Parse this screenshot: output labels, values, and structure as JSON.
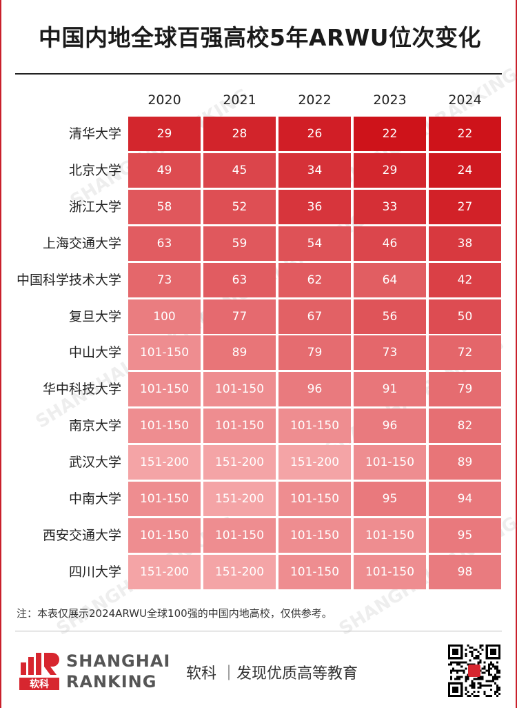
{
  "title": "中国内地全球百强高校5年ARWU位次变化",
  "note": "注：本表仅展示2024ARWU全球100强的中国内地高校，仅供参考。",
  "footer": {
    "logo_cn": "软科",
    "logo_line1": "SHANGHAI",
    "logo_line2": "RANKING",
    "slogan": "软科 ｜发现优质高等教育"
  },
  "watermark": "SHANGHAI RANKING",
  "colors": {
    "accent": "#c9202b",
    "dark_cell": "#cc0c14",
    "light_cell": "#f4a4a6"
  },
  "chart_data": {
    "type": "heatmap",
    "columns": [
      "2020",
      "2021",
      "2022",
      "2023",
      "2024"
    ],
    "rows": [
      "清华大学",
      "北京大学",
      "浙江大学",
      "上海交通大学",
      "中国科学技术大学",
      "复旦大学",
      "中山大学",
      "华中科技大学",
      "南京大学",
      "武汉大学",
      "中南大学",
      "西安交通大学",
      "四川大学"
    ],
    "values": [
      [
        "29",
        "28",
        "26",
        "22",
        "22"
      ],
      [
        "49",
        "45",
        "34",
        "29",
        "24"
      ],
      [
        "58",
        "52",
        "36",
        "33",
        "27"
      ],
      [
        "63",
        "59",
        "54",
        "46",
        "38"
      ],
      [
        "73",
        "63",
        "62",
        "64",
        "42"
      ],
      [
        "100",
        "77",
        "67",
        "56",
        "50"
      ],
      [
        "101-150",
        "89",
        "79",
        "73",
        "72"
      ],
      [
        "101-150",
        "101-150",
        "96",
        "91",
        "79"
      ],
      [
        "101-150",
        "101-150",
        "101-150",
        "96",
        "82"
      ],
      [
        "151-200",
        "151-200",
        "151-200",
        "101-150",
        "89"
      ],
      [
        "101-150",
        "151-200",
        "101-150",
        "95",
        "94"
      ],
      [
        "101-150",
        "101-150",
        "101-150",
        "101-150",
        "95"
      ],
      [
        "151-200",
        "151-200",
        "101-150",
        "101-150",
        "98"
      ]
    ]
  }
}
